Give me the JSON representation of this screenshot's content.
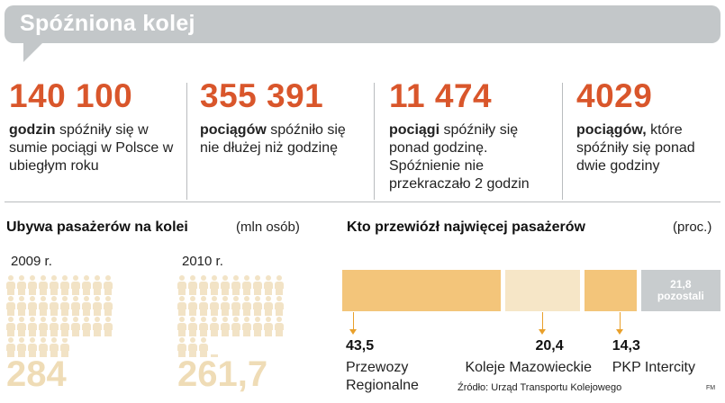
{
  "title": "Spóźniona kolej",
  "stats": [
    {
      "value": "140 100",
      "bold": "godzin",
      "rest": " spóźniły się w sumie pociągi w Polsce w ubiegłym roku"
    },
    {
      "value": "355 391",
      "bold": "pociągów",
      "rest": " spóźniło się nie dłużej niż godzinę"
    },
    {
      "value": "11 474",
      "bold": "pociągi",
      "rest": " spóźniły się ponad godzinę. Spóźnienie nie przekraczało 2 godzin"
    },
    {
      "value": "4029",
      "bold": "pociągów,",
      "rest": " które spóźniły się ponad dwie godziny"
    }
  ],
  "passengers": {
    "title": "Ubywa pasażerów na kolei",
    "unit": "(mln osób)",
    "years": [
      {
        "label": "2009 r.",
        "total": "284",
        "fraction": 0.284
      },
      {
        "label": "2010 r.",
        "total": "261,7",
        "fraction": 0.2617
      }
    ]
  },
  "carriers": {
    "title": "Kto przewiózł najwięcej pasażerów",
    "unit": "(proc.)",
    "items": [
      {
        "percent": "43,5",
        "name_line1": "Przewozy",
        "name_line2": "Regionalne",
        "value": 43.5,
        "color": "#f3c57a"
      },
      {
        "percent": "20,4",
        "name_line1": "Koleje Mazowieckie",
        "name_line2": "",
        "value": 20.4,
        "color": "#f6e6c7"
      },
      {
        "percent": "14,3",
        "name_line1": "PKP Intercity",
        "name_line2": "",
        "value": 14.3,
        "color": "#f3c57a"
      }
    ],
    "rest": {
      "value": "21,8",
      "label": "pozostali",
      "color": "#c8ccce"
    }
  },
  "colors": {
    "accent": "#d9562b",
    "person_full": "#f2e3c6",
    "person_icon": "#f2e3c6"
  },
  "source": "Źródło: Urząd Transportu Kolejowego",
  "credit": "FM"
}
